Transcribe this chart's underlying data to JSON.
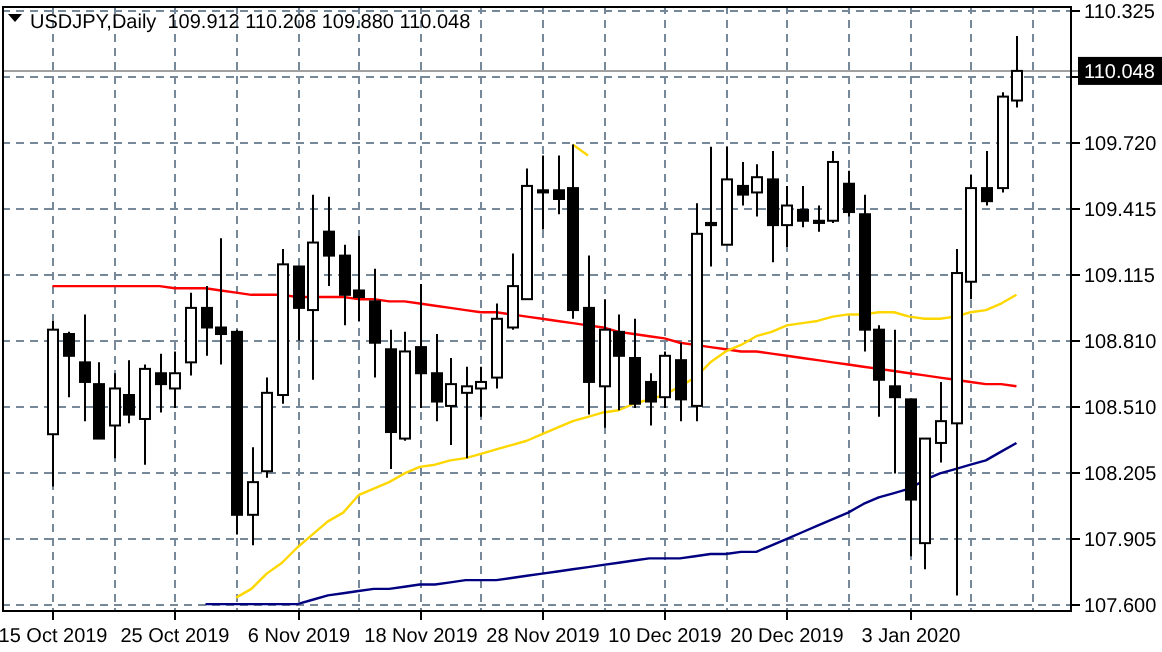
{
  "chart_data": {
    "type": "candlestick",
    "title": "USDJPY,Daily  109.912 110.208 109.880 110.048",
    "categories": [
      "15 Oct 2019",
      null,
      null,
      null,
      null,
      null,
      null,
      null,
      "25 Oct 2019",
      null,
      null,
      null,
      null,
      null,
      null,
      null,
      "6 Nov 2019",
      null,
      null,
      null,
      null,
      null,
      null,
      null,
      "18 Nov 2019",
      null,
      null,
      null,
      null,
      null,
      null,
      null,
      "28 Nov 2019",
      null,
      null,
      null,
      null,
      null,
      null,
      null,
      "10 Dec 2019",
      null,
      null,
      null,
      null,
      null,
      null,
      null,
      "20 Dec 2019",
      null,
      null,
      null,
      null,
      null,
      null,
      null,
      "3 Jan 2020",
      null,
      null,
      null,
      null,
      null,
      null,
      null
    ],
    "ohlc": [
      [
        108.38,
        108.9,
        108.14,
        108.86
      ],
      [
        108.84,
        108.85,
        108.55,
        108.74
      ],
      [
        108.71,
        108.93,
        108.44,
        108.62
      ],
      [
        108.61,
        108.71,
        108.36,
        108.36
      ],
      [
        108.42,
        108.66,
        108.27,
        108.59
      ],
      [
        108.56,
        108.72,
        108.43,
        108.47
      ],
      [
        108.45,
        108.7,
        108.24,
        108.68
      ],
      [
        108.66,
        108.75,
        108.48,
        108.61
      ],
      [
        108.59,
        108.76,
        108.5,
        108.66
      ],
      [
        108.71,
        109.03,
        108.65,
        108.96
      ],
      [
        108.96,
        109.06,
        108.74,
        108.87
      ],
      [
        108.87,
        109.28,
        108.7,
        108.84
      ],
      [
        108.85,
        108.86,
        107.92,
        108.01
      ],
      [
        108.01,
        108.32,
        107.87,
        108.16
      ],
      [
        108.21,
        108.64,
        108.18,
        108.57
      ],
      [
        108.56,
        109.23,
        108.52,
        109.16
      ],
      [
        109.15,
        109.15,
        108.81,
        108.96
      ],
      [
        108.95,
        109.48,
        108.63,
        109.26
      ],
      [
        109.31,
        109.47,
        109.06,
        109.2
      ],
      [
        109.2,
        109.25,
        108.88,
        109.02
      ],
      [
        109.04,
        109.29,
        108.9,
        109.01
      ],
      [
        108.99,
        109.14,
        108.64,
        108.8
      ],
      [
        108.77,
        108.86,
        108.22,
        108.39
      ],
      [
        108.36,
        108.85,
        108.35,
        108.76
      ],
      [
        108.78,
        109.07,
        108.5,
        108.66
      ],
      [
        108.66,
        108.84,
        108.44,
        108.53
      ],
      [
        108.51,
        108.73,
        108.33,
        108.61
      ],
      [
        108.57,
        108.69,
        108.27,
        108.6
      ],
      [
        108.59,
        108.69,
        108.46,
        108.62
      ],
      [
        108.64,
        108.98,
        108.59,
        108.91
      ],
      [
        108.87,
        109.21,
        108.86,
        109.06
      ],
      [
        109.0,
        109.6,
        109.0,
        109.52
      ],
      [
        109.5,
        109.66,
        109.32,
        109.49
      ],
      [
        109.5,
        109.66,
        109.39,
        109.46
      ],
      [
        109.51,
        109.71,
        108.91,
        108.95
      ],
      [
        108.96,
        109.2,
        108.47,
        108.62
      ],
      [
        108.6,
        109.0,
        108.41,
        108.86
      ],
      [
        108.85,
        108.93,
        108.49,
        108.74
      ],
      [
        108.73,
        108.91,
        108.5,
        108.52
      ],
      [
        108.62,
        108.66,
        108.42,
        108.53
      ],
      [
        108.55,
        108.76,
        108.5,
        108.74
      ],
      [
        108.72,
        108.8,
        108.44,
        108.54
      ],
      [
        108.51,
        109.44,
        108.44,
        109.3
      ],
      [
        109.35,
        109.7,
        109.15,
        109.34
      ],
      [
        109.25,
        109.7,
        109.25,
        109.55
      ],
      [
        109.52,
        109.63,
        109.43,
        109.48
      ],
      [
        109.49,
        109.62,
        109.38,
        109.56
      ],
      [
        109.55,
        109.68,
        109.17,
        109.34
      ],
      [
        109.34,
        109.52,
        109.24,
        109.43
      ],
      [
        109.41,
        109.52,
        109.33,
        109.36
      ],
      [
        109.36,
        109.43,
        109.31,
        109.35
      ],
      [
        109.36,
        109.68,
        109.35,
        109.63
      ],
      [
        109.53,
        109.59,
        109.38,
        109.4
      ],
      [
        109.39,
        109.48,
        108.76,
        108.86
      ],
      [
        108.86,
        108.88,
        108.46,
        108.63
      ],
      [
        108.6,
        108.86,
        108.2,
        108.55
      ],
      [
        108.54,
        108.54,
        107.82,
        108.08
      ],
      [
        107.88,
        108.36,
        107.76,
        108.36
      ],
      [
        108.34,
        108.62,
        108.25,
        108.44
      ],
      [
        108.43,
        109.23,
        107.64,
        109.12
      ],
      [
        109.08,
        109.57,
        109.0,
        109.51
      ],
      [
        109.51,
        109.68,
        109.43,
        109.45
      ],
      [
        109.51,
        109.95,
        109.49,
        109.93
      ],
      [
        109.912,
        110.208,
        109.88,
        110.048
      ]
    ],
    "series": [
      {
        "type": "line",
        "color": "#ff0000",
        "values": [
          109.06,
          109.06,
          109.06,
          109.06,
          109.06,
          109.06,
          109.06,
          109.06,
          109.05,
          109.05,
          109.05,
          109.04,
          109.03,
          109.02,
          109.02,
          109.02,
          109.01,
          109.01,
          109.01,
          109.01,
          109.0,
          109.0,
          108.99,
          108.99,
          108.98,
          108.97,
          108.96,
          108.95,
          108.94,
          108.94,
          108.93,
          108.92,
          108.91,
          108.9,
          108.89,
          108.88,
          108.87,
          108.85,
          108.84,
          108.83,
          108.82,
          108.8,
          108.79,
          108.78,
          108.77,
          108.76,
          108.76,
          108.75,
          108.74,
          108.73,
          108.72,
          108.71,
          108.7,
          108.69,
          108.68,
          108.67,
          108.66,
          108.65,
          108.64,
          108.63,
          108.62,
          108.61,
          108.61,
          108.6
        ]
      },
      {
        "type": "line",
        "color": "#ffd700",
        "values": [
          null,
          null,
          null,
          null,
          null,
          null,
          null,
          null,
          null,
          null,
          null,
          null,
          107.63,
          107.67,
          107.74,
          107.79,
          107.86,
          107.92,
          107.98,
          108.02,
          108.1,
          108.13,
          108.16,
          108.2,
          108.23,
          108.24,
          108.26,
          108.27,
          108.29,
          108.31,
          108.33,
          108.35,
          108.38,
          108.41,
          108.44,
          108.46,
          108.48,
          108.49,
          108.52,
          108.54,
          108.56,
          108.6,
          108.64,
          108.71,
          108.76,
          108.79,
          108.83,
          108.85,
          108.88,
          108.89,
          108.9,
          108.92,
          108.93,
          108.93,
          108.94,
          108.94,
          108.92,
          108.91,
          108.91,
          108.92,
          108.94,
          108.95,
          108.98,
          109.02
        ]
      },
      {
        "type": "line",
        "color": "#000080",
        "values": [
          null,
          null,
          null,
          null,
          null,
          null,
          null,
          null,
          null,
          null,
          107.6,
          107.6,
          107.6,
          107.6,
          107.6,
          107.6,
          107.6,
          107.62,
          107.64,
          107.65,
          107.66,
          107.67,
          107.67,
          107.68,
          107.69,
          107.69,
          107.7,
          107.71,
          107.71,
          107.71,
          107.72,
          107.73,
          107.74,
          107.75,
          107.76,
          107.77,
          107.78,
          107.79,
          107.8,
          107.81,
          107.81,
          107.81,
          107.82,
          107.83,
          107.83,
          107.84,
          107.84,
          107.87,
          107.9,
          107.93,
          107.96,
          107.99,
          108.02,
          108.06,
          108.09,
          108.11,
          108.13,
          108.17,
          108.2,
          108.22,
          108.24,
          108.26,
          108.3,
          108.34
        ]
      },
      {
        "type": "line",
        "color": "#ffd700",
        "values": [
          null,
          null,
          null,
          null,
          null,
          null,
          null,
          null,
          null,
          null,
          null,
          null,
          null,
          null,
          null,
          null,
          null,
          null,
          null,
          null,
          null,
          null,
          null,
          null,
          null,
          null,
          null,
          null,
          null,
          null,
          null,
          null,
          null,
          null,
          109.71,
          109.66,
          null,
          null,
          null,
          null,
          null,
          null,
          null,
          null,
          null,
          null,
          null,
          null,
          null,
          null,
          null,
          null,
          null,
          null,
          null,
          null,
          null,
          null,
          null,
          null,
          null,
          null,
          null,
          null
        ]
      }
    ],
    "ylim": [
      107.573,
      110.346
    ],
    "yticks": [
      110.325,
      {
        "value": 110.022,
        "label": null
      },
      {
        "value": 109.72,
        "label": "109.720"
      },
      109.415,
      109.115,
      {
        "value": 108.81,
        "label": "108.810"
      },
      {
        "value": 108.51,
        "label": "108.510"
      },
      108.205,
      107.905,
      {
        "value": 107.6,
        "label": "107.600"
      }
    ],
    "ref_lines": [
      {
        "axis": "y",
        "value": 110.048,
        "label": "110.048",
        "color": "#a0a0a0"
      }
    ],
    "grid": true,
    "marker": "none",
    "line_style": "solid"
  }
}
